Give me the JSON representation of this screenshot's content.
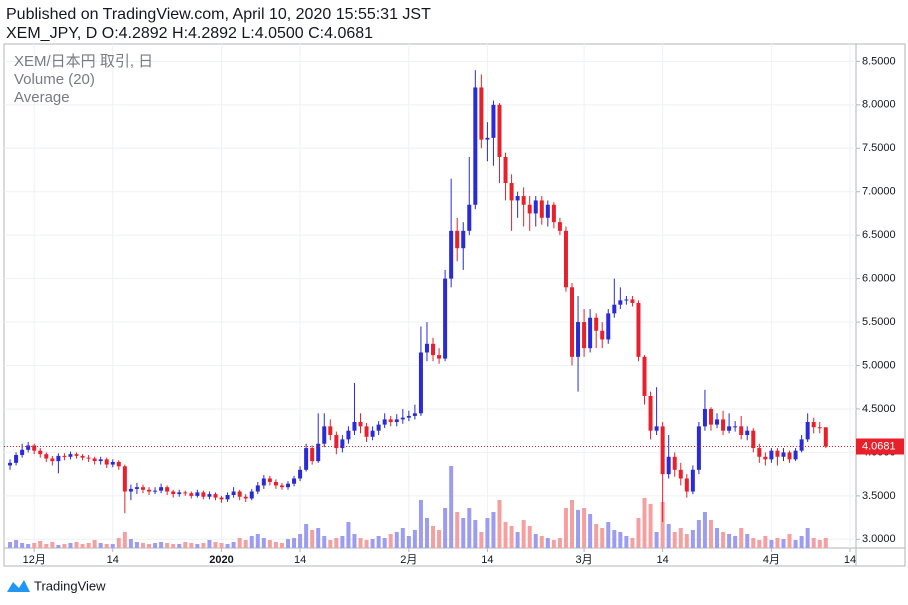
{
  "header": {
    "published": "Published on TradingView.com, April 10, 2020 15:55:31 JST",
    "ohlc": "XEM_JPY, D O:4.2892 H:4.2892 L:4.0500 C:4.0681"
  },
  "legend": {
    "symbol": "XEM/日本円 取引, 日",
    "volume": "Volume (20)",
    "average": "Average"
  },
  "footer": {
    "brand": "TradingView"
  },
  "chart_data": {
    "type": "candlestick",
    "up_color": "#2a2ad6",
    "down_color": "#e8202c",
    "volume_up_color": "#9c9cf0",
    "volume_down_color": "#f5a0a0",
    "grid": true,
    "ylim": [
      2.9,
      8.7
    ],
    "yticks": [
      {
        "value": 3.0,
        "label": "3.0000"
      },
      {
        "value": 3.5,
        "label": "3.5000"
      },
      {
        "value": 4.0,
        "label": "4.0000"
      },
      {
        "value": 4.5,
        "label": "4.5000"
      },
      {
        "value": 5.0,
        "label": "5.0000"
      },
      {
        "value": 5.5,
        "label": "5.5000"
      },
      {
        "value": 6.0,
        "label": "6.0000"
      },
      {
        "value": 6.5,
        "label": "6.5000"
      },
      {
        "value": 7.0,
        "label": "7.0000"
      },
      {
        "value": 7.5,
        "label": "7.5000"
      },
      {
        "value": 8.0,
        "label": "8.0000"
      },
      {
        "value": 8.5,
        "label": "8.5000"
      }
    ],
    "xlim": [
      "2019-11-26",
      "2020-04-15"
    ],
    "xticks": [
      {
        "value": "2019-12-01",
        "label": "12月"
      },
      {
        "value": "2019-12-14",
        "label": "14"
      },
      {
        "value": "2020-01-01",
        "label": "2020"
      },
      {
        "value": "2020-01-14",
        "label": "14"
      },
      {
        "value": "2020-02-01",
        "label": "2月"
      },
      {
        "value": "2020-02-14",
        "label": "14"
      },
      {
        "value": "2020-03-01",
        "label": "3月"
      },
      {
        "value": "2020-03-14",
        "label": "14"
      },
      {
        "value": "2020-04-01",
        "label": "4月"
      },
      {
        "value": "2020-04-14",
        "label": "14"
      }
    ],
    "x": [
      "2019-11-27",
      "2019-11-28",
      "2019-11-29",
      "2019-11-30",
      "2019-12-01",
      "2019-12-02",
      "2019-12-03",
      "2019-12-04",
      "2019-12-05",
      "2019-12-06",
      "2019-12-07",
      "2019-12-08",
      "2019-12-09",
      "2019-12-10",
      "2019-12-11",
      "2019-12-12",
      "2019-12-13",
      "2019-12-14",
      "2019-12-15",
      "2019-12-16",
      "2019-12-17",
      "2019-12-18",
      "2019-12-19",
      "2019-12-20",
      "2019-12-21",
      "2019-12-22",
      "2019-12-23",
      "2019-12-24",
      "2019-12-25",
      "2019-12-26",
      "2019-12-27",
      "2019-12-28",
      "2019-12-29",
      "2019-12-30",
      "2019-12-31",
      "2020-01-01",
      "2020-01-02",
      "2020-01-03",
      "2020-01-04",
      "2020-01-05",
      "2020-01-06",
      "2020-01-07",
      "2020-01-08",
      "2020-01-09",
      "2020-01-10",
      "2020-01-11",
      "2020-01-12",
      "2020-01-13",
      "2020-01-14",
      "2020-01-15",
      "2020-01-16",
      "2020-01-17",
      "2020-01-18",
      "2020-01-19",
      "2020-01-20",
      "2020-01-21",
      "2020-01-22",
      "2020-01-23",
      "2020-01-24",
      "2020-01-25",
      "2020-01-26",
      "2020-01-27",
      "2020-01-28",
      "2020-01-29",
      "2020-01-30",
      "2020-01-31",
      "2020-02-01",
      "2020-02-02",
      "2020-02-03",
      "2020-02-04",
      "2020-02-05",
      "2020-02-06",
      "2020-02-07",
      "2020-02-08",
      "2020-02-09",
      "2020-02-10",
      "2020-02-11",
      "2020-02-12",
      "2020-02-13",
      "2020-02-14",
      "2020-02-15",
      "2020-02-16",
      "2020-02-17",
      "2020-02-18",
      "2020-02-19",
      "2020-02-20",
      "2020-02-21",
      "2020-02-22",
      "2020-02-23",
      "2020-02-24",
      "2020-02-25",
      "2020-02-26",
      "2020-02-27",
      "2020-02-28",
      "2020-02-29",
      "2020-03-01",
      "2020-03-02",
      "2020-03-03",
      "2020-03-04",
      "2020-03-05",
      "2020-03-06",
      "2020-03-07",
      "2020-03-08",
      "2020-03-09",
      "2020-03-10",
      "2020-03-11",
      "2020-03-12",
      "2020-03-13",
      "2020-03-14",
      "2020-03-15",
      "2020-03-16",
      "2020-03-17",
      "2020-03-18",
      "2020-03-19",
      "2020-03-20",
      "2020-03-21",
      "2020-03-22",
      "2020-03-23",
      "2020-03-24",
      "2020-03-25",
      "2020-03-26",
      "2020-03-27",
      "2020-03-28",
      "2020-03-29",
      "2020-03-30",
      "2020-03-31",
      "2020-04-01",
      "2020-04-02",
      "2020-04-03",
      "2020-04-04",
      "2020-04-05",
      "2020-04-06",
      "2020-04-07",
      "2020-04-08",
      "2020-04-09",
      "2020-04-10"
    ],
    "open": [
      3.85,
      3.88,
      3.97,
      4.03,
      4.08,
      4.02,
      3.98,
      3.93,
      3.9,
      3.96,
      3.95,
      3.98,
      3.96,
      3.94,
      3.93,
      3.9,
      3.92,
      3.86,
      3.89,
      3.84,
      3.55,
      3.58,
      3.6,
      3.57,
      3.55,
      3.56,
      3.6,
      3.55,
      3.52,
      3.54,
      3.53,
      3.5,
      3.54,
      3.49,
      3.52,
      3.48,
      3.46,
      3.51,
      3.55,
      3.49,
      3.47,
      3.55,
      3.62,
      3.7,
      3.66,
      3.62,
      3.6,
      3.64,
      3.7,
      3.8,
      4.05,
      3.9,
      4.1,
      4.3,
      4.2,
      4.05,
      4.15,
      4.25,
      4.35,
      4.3,
      4.18,
      4.25,
      4.32,
      4.38,
      4.35,
      4.38,
      4.4,
      4.42,
      4.45,
      5.15,
      5.25,
      5.12,
      5.08,
      6.0,
      6.55,
      6.35,
      6.55,
      6.85,
      8.2,
      7.6,
      7.62,
      8.0,
      7.4,
      7.1,
      6.9,
      6.95,
      6.85,
      6.75,
      6.9,
      6.7,
      6.85,
      6.65,
      6.55,
      5.9,
      5.1,
      5.5,
      5.2,
      5.55,
      5.4,
      5.3,
      5.6,
      5.7,
      5.75,
      5.76,
      5.72,
      5.1,
      4.65,
      4.25,
      4.3,
      3.75,
      3.95,
      3.8,
      3.7,
      3.55,
      3.8,
      4.3,
      4.5,
      4.32,
      4.38,
      4.25,
      4.3,
      4.3,
      4.2,
      4.25,
      4.05,
      3.95,
      3.92,
      4.02,
      3.95,
      4.0,
      3.92,
      4.02,
      4.15,
      4.35,
      4.29,
      4.2892
    ],
    "high": [
      3.92,
      4.0,
      4.1,
      4.12,
      4.1,
      4.05,
      4.0,
      3.96,
      3.99,
      3.99,
      4.01,
      4.0,
      3.98,
      3.97,
      3.95,
      3.95,
      3.94,
      3.92,
      3.91,
      3.86,
      3.63,
      3.65,
      3.63,
      3.6,
      3.6,
      3.64,
      3.62,
      3.57,
      3.57,
      3.56,
      3.55,
      3.57,
      3.56,
      3.55,
      3.54,
      3.5,
      3.54,
      3.6,
      3.57,
      3.52,
      3.58,
      3.66,
      3.74,
      3.73,
      3.69,
      3.65,
      3.67,
      3.73,
      3.84,
      4.1,
      4.08,
      4.45,
      4.45,
      4.38,
      4.24,
      4.2,
      4.3,
      4.8,
      4.45,
      4.34,
      4.3,
      4.36,
      4.45,
      4.42,
      4.44,
      4.5,
      4.48,
      4.55,
      5.45,
      5.5,
      5.32,
      5.2,
      6.1,
      7.15,
      6.7,
      6.65,
      7.4,
      8.4,
      8.35,
      7.8,
      8.05,
      8.02,
      7.45,
      7.2,
      7.0,
      7.05,
      6.95,
      6.95,
      6.95,
      6.9,
      6.88,
      6.7,
      6.6,
      5.95,
      5.8,
      5.65,
      5.65,
      5.6,
      5.5,
      5.65,
      6.0,
      5.9,
      5.8,
      5.8,
      5.75,
      5.12,
      4.7,
      4.75,
      4.35,
      4.2,
      4.0,
      3.88,
      3.75,
      3.85,
      4.35,
      4.72,
      4.52,
      4.45,
      4.48,
      4.45,
      4.36,
      4.42,
      4.3,
      4.28,
      4.1,
      4.0,
      4.05,
      4.05,
      4.05,
      4.02,
      4.05,
      4.2,
      4.45,
      4.4,
      4.35,
      4.2892
    ],
    "low": [
      3.8,
      3.85,
      3.94,
      4.0,
      3.98,
      3.94,
      3.89,
      3.85,
      3.76,
      3.91,
      3.92,
      3.93,
      3.91,
      3.89,
      3.86,
      3.86,
      3.82,
      3.83,
      3.8,
      3.3,
      3.45,
      3.52,
      3.53,
      3.51,
      3.52,
      3.53,
      3.51,
      3.48,
      3.49,
      3.5,
      3.47,
      3.48,
      3.46,
      3.46,
      3.45,
      3.42,
      3.43,
      3.48,
      3.45,
      3.43,
      3.45,
      3.52,
      3.58,
      3.62,
      3.58,
      3.57,
      3.57,
      3.61,
      3.67,
      3.78,
      3.86,
      3.88,
      4.06,
      4.14,
      3.98,
      4.0,
      4.1,
      4.2,
      4.22,
      4.12,
      4.14,
      4.2,
      4.28,
      4.3,
      4.3,
      4.33,
      4.36,
      4.38,
      4.42,
      5.05,
      5.05,
      5.02,
      5.05,
      5.9,
      6.2,
      6.1,
      6.5,
      6.8,
      7.5,
      7.35,
      7.3,
      7.1,
      6.9,
      6.55,
      6.7,
      6.6,
      6.55,
      6.6,
      6.62,
      6.6,
      6.58,
      6.5,
      5.85,
      5.0,
      4.7,
      5.1,
      5.15,
      5.2,
      5.2,
      5.25,
      5.55,
      5.65,
      5.7,
      5.68,
      5.05,
      4.55,
      4.15,
      4.2,
      3.2,
      3.7,
      3.72,
      3.62,
      3.48,
      3.52,
      3.75,
      4.25,
      4.25,
      4.28,
      4.2,
      4.22,
      4.24,
      4.15,
      4.14,
      4.0,
      3.88,
      3.85,
      3.88,
      3.85,
      3.9,
      3.88,
      3.9,
      4.0,
      4.12,
      4.22,
      4.22,
      4.05
    ],
    "close": [
      3.88,
      3.97,
      4.03,
      4.08,
      4.02,
      3.98,
      3.93,
      3.9,
      3.96,
      3.95,
      3.98,
      3.96,
      3.94,
      3.93,
      3.9,
      3.92,
      3.86,
      3.89,
      3.84,
      3.55,
      3.58,
      3.6,
      3.57,
      3.55,
      3.56,
      3.6,
      3.55,
      3.52,
      3.54,
      3.53,
      3.5,
      3.54,
      3.49,
      3.52,
      3.48,
      3.46,
      3.51,
      3.55,
      3.49,
      3.47,
      3.55,
      3.62,
      3.7,
      3.66,
      3.62,
      3.6,
      3.64,
      3.7,
      3.8,
      4.05,
      3.9,
      4.1,
      4.3,
      4.2,
      4.05,
      4.15,
      4.25,
      4.35,
      4.3,
      4.18,
      4.25,
      4.32,
      4.38,
      4.35,
      4.38,
      4.4,
      4.42,
      4.45,
      5.15,
      5.25,
      5.12,
      5.08,
      6.0,
      6.55,
      6.35,
      6.55,
      6.85,
      8.2,
      7.6,
      7.62,
      8.0,
      7.4,
      7.1,
      6.9,
      6.95,
      6.85,
      6.75,
      6.9,
      6.7,
      6.85,
      6.65,
      6.55,
      5.9,
      5.1,
      5.5,
      5.2,
      5.55,
      5.4,
      5.3,
      5.6,
      5.7,
      5.75,
      5.76,
      5.72,
      5.1,
      4.65,
      4.25,
      4.3,
      3.75,
      3.95,
      3.8,
      3.7,
      3.55,
      3.8,
      4.3,
      4.5,
      4.32,
      4.38,
      4.25,
      4.3,
      4.3,
      4.2,
      4.25,
      4.05,
      3.95,
      3.92,
      4.02,
      3.95,
      4.0,
      3.92,
      4.02,
      4.15,
      4.35,
      4.29,
      4.2892,
      4.0681
    ],
    "close_label": "4.0681",
    "volume": [
      6,
      8,
      5,
      4,
      5,
      7,
      4,
      6,
      3,
      4,
      5,
      6,
      4,
      5,
      8,
      5,
      4,
      4,
      10,
      16,
      9,
      6,
      5,
      4,
      5,
      6,
      5,
      4,
      4,
      6,
      5,
      4,
      5,
      8,
      6,
      5,
      4,
      6,
      10,
      8,
      12,
      14,
      10,
      8,
      6,
      5,
      9,
      10,
      14,
      24,
      18,
      20,
      12,
      8,
      10,
      12,
      26,
      14,
      10,
      8,
      9,
      12,
      10,
      14,
      16,
      20,
      12,
      18,
      48,
      30,
      22,
      18,
      40,
      82,
      36,
      30,
      40,
      28,
      16,
      30,
      36,
      48,
      26,
      22,
      16,
      28,
      22,
      14,
      12,
      10,
      8,
      10,
      40,
      48,
      38,
      40,
      34,
      24,
      20,
      26,
      18,
      16,
      12,
      10,
      30,
      50,
      44,
      16,
      46,
      24,
      16,
      20,
      14,
      18,
      28,
      36,
      28,
      20,
      16,
      14,
      12,
      20,
      14,
      10,
      8,
      12,
      8,
      10,
      9,
      14,
      8,
      12,
      20,
      10,
      8,
      10
    ]
  }
}
